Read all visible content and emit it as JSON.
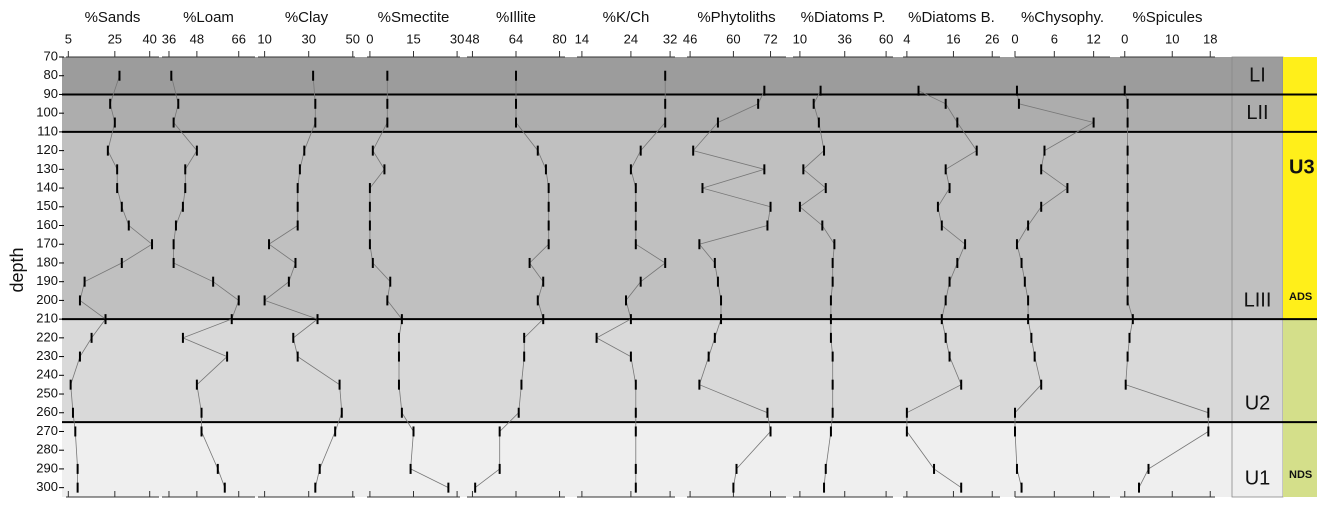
{
  "depth_axis": {
    "label": "depth",
    "ylim": [
      70,
      305
    ],
    "yticks": [
      70,
      80,
      90,
      100,
      110,
      120,
      130,
      140,
      150,
      160,
      170,
      180,
      190,
      200,
      210,
      220,
      230,
      240,
      250,
      260,
      270,
      280,
      290,
      300
    ]
  },
  "zones": [
    {
      "label": "LI",
      "from": 70,
      "to": 90,
      "color": "#9c9c9c"
    },
    {
      "label": "LII",
      "from": 90,
      "to": 110,
      "color": "#adadad"
    },
    {
      "label": "LIII",
      "from": 110,
      "to": 210,
      "color": "#c0c0c0"
    },
    {
      "label": "U2",
      "from": 210,
      "to": 265,
      "color": "#d9d9d9"
    },
    {
      "label": "U1",
      "from": 265,
      "to": 305,
      "color": "#efefef"
    }
  ],
  "units": [
    {
      "label": "U3",
      "note": "ADS",
      "from": 70,
      "to": 210,
      "color": "#ffef1a"
    },
    {
      "note": "NDS",
      "from": 210,
      "to": 305,
      "color": "#d4df8a"
    }
  ],
  "chart_data": [
    {
      "type": "line",
      "title": "%Sands",
      "xlim": [
        4,
        44
      ],
      "xticks": [
        5,
        25,
        40
      ],
      "depth": [
        80,
        95,
        105,
        120,
        130,
        140,
        150,
        160,
        170,
        180,
        190,
        200,
        210,
        220,
        230,
        245,
        260,
        270,
        290,
        300
      ],
      "values": [
        27,
        23,
        25,
        22,
        26,
        26,
        28,
        31,
        41,
        28,
        12,
        10,
        21,
        15,
        10,
        6,
        7,
        8,
        9,
        9
      ]
    },
    {
      "type": "line",
      "title": "%Loam",
      "xlim": [
        33,
        73
      ],
      "xticks": [
        36,
        48,
        66
      ],
      "depth": [
        80,
        95,
        105,
        120,
        130,
        140,
        150,
        160,
        170,
        180,
        190,
        200,
        210,
        220,
        230,
        245,
        260,
        270,
        290,
        300
      ],
      "values": [
        37,
        40,
        38,
        48,
        43,
        43,
        42,
        39,
        38,
        38,
        55,
        66,
        63,
        42,
        61,
        48,
        50,
        50,
        57,
        60
      ]
    },
    {
      "type": "line",
      "title": "%Clay",
      "xlim": [
        7,
        51
      ],
      "xticks": [
        10,
        30,
        50
      ],
      "depth": [
        80,
        95,
        105,
        120,
        130,
        140,
        150,
        160,
        170,
        180,
        190,
        200,
        210,
        220,
        230,
        245,
        260,
        270,
        290,
        300
      ],
      "values": [
        32,
        33,
        33,
        28,
        26,
        25,
        25,
        25,
        12,
        24,
        21,
        10,
        34,
        23,
        25,
        44,
        45,
        42,
        35,
        33
      ]
    },
    {
      "type": "line",
      "title": "%Smectite",
      "xlim": [
        -1,
        31
      ],
      "xticks": [
        0,
        15,
        30
      ],
      "depth": [
        80,
        95,
        105,
        120,
        130,
        140,
        150,
        160,
        170,
        180,
        190,
        200,
        210,
        220,
        230,
        245,
        260,
        270,
        290,
        300
      ],
      "values": [
        6,
        6,
        6,
        1,
        5,
        0,
        0,
        0,
        0,
        1,
        7,
        6,
        11,
        10,
        10,
        10,
        11,
        15,
        14,
        27
      ]
    },
    {
      "type": "line",
      "title": "%Illite",
      "xlim": [
        46,
        82
      ],
      "xticks": [
        48,
        64,
        80
      ],
      "depth": [
        80,
        95,
        105,
        120,
        130,
        140,
        150,
        160,
        170,
        180,
        190,
        200,
        210,
        220,
        230,
        245,
        260,
        270,
        290,
        300
      ],
      "values": [
        64,
        64,
        64,
        72,
        75,
        76,
        76,
        76,
        76,
        69,
        74,
        72,
        74,
        67,
        67,
        66,
        65,
        58,
        58,
        49
      ]
    },
    {
      "type": "line",
      "title": "%K/Ch",
      "xlim": [
        13,
        33
      ],
      "xticks": [
        14,
        24,
        32
      ],
      "depth": [
        80,
        95,
        105,
        120,
        130,
        140,
        150,
        160,
        170,
        180,
        190,
        200,
        210,
        220,
        230,
        245,
        260,
        270,
        290,
        300
      ],
      "values": [
        31,
        31,
        31,
        26,
        24,
        25,
        25,
        25,
        25,
        31,
        26,
        23,
        24,
        17,
        24,
        25,
        25,
        25,
        25,
        25
      ]
    },
    {
      "type": "line",
      "title": "%Phytoliths",
      "xlim": [
        45,
        77
      ],
      "xticks": [
        46,
        60,
        72
      ],
      "depth": [
        88,
        95,
        105,
        120,
        130,
        140,
        150,
        160,
        170,
        180,
        190,
        200,
        210,
        220,
        230,
        245,
        260,
        270,
        290,
        300
      ],
      "values": [
        70,
        68,
        55,
        47,
        70,
        50,
        72,
        71,
        49,
        54,
        55,
        56,
        56,
        54,
        52,
        49,
        71,
        72,
        61,
        60
      ]
    },
    {
      "type": "line",
      "title": "%Diatoms P.",
      "xlim": [
        6,
        64
      ],
      "xticks": [
        10,
        36,
        60
      ],
      "depth": [
        88,
        95,
        105,
        120,
        130,
        140,
        150,
        160,
        170,
        180,
        190,
        200,
        210,
        220,
        230,
        245,
        260,
        270,
        290,
        300
      ],
      "values": [
        22,
        18,
        21,
        24,
        12,
        25,
        10,
        23,
        30,
        29,
        29,
        28,
        28,
        28,
        29,
        29,
        29,
        28,
        25,
        24
      ]
    },
    {
      "type": "line",
      "title": "%Diatoms B.",
      "xlim": [
        3,
        28
      ],
      "xticks": [
        4,
        16,
        26
      ],
      "depth": [
        88,
        95,
        105,
        120,
        130,
        140,
        150,
        160,
        170,
        180,
        190,
        200,
        210,
        220,
        230,
        245,
        260,
        270,
        290,
        300
      ],
      "values": [
        7,
        14,
        17,
        22,
        14,
        15,
        12,
        13,
        19,
        17,
        15,
        14,
        13,
        14,
        15,
        18,
        4,
        4,
        11,
        18
      ]
    },
    {
      "type": "line",
      "title": "%Chysophy.",
      "xlim": [
        0,
        14.5
      ],
      "xticks": [
        0,
        6,
        12
      ],
      "depth": [
        88,
        95,
        105,
        120,
        130,
        140,
        150,
        160,
        170,
        180,
        190,
        200,
        210,
        220,
        230,
        245,
        260,
        270,
        290,
        300
      ],
      "values": [
        0.3,
        0.6,
        12,
        4.5,
        4,
        8,
        4,
        2,
        0.3,
        1,
        1.5,
        2,
        2,
        2.5,
        3,
        4,
        0,
        0,
        0.3,
        1
      ]
    },
    {
      "type": "line",
      "title": "%Spicules",
      "xlim": [
        -1,
        19
      ],
      "xticks": [
        0,
        10,
        18
      ],
      "depth": [
        88,
        95,
        105,
        120,
        130,
        140,
        150,
        160,
        170,
        180,
        190,
        200,
        210,
        220,
        230,
        245,
        260,
        270,
        290,
        300
      ],
      "values": [
        0,
        0.6,
        0.6,
        0.6,
        0.6,
        0.6,
        0.6,
        0.6,
        0.6,
        0.6,
        0.6,
        0.6,
        1.7,
        1,
        0.6,
        0.2,
        17.6,
        17.6,
        5,
        3
      ]
    }
  ]
}
